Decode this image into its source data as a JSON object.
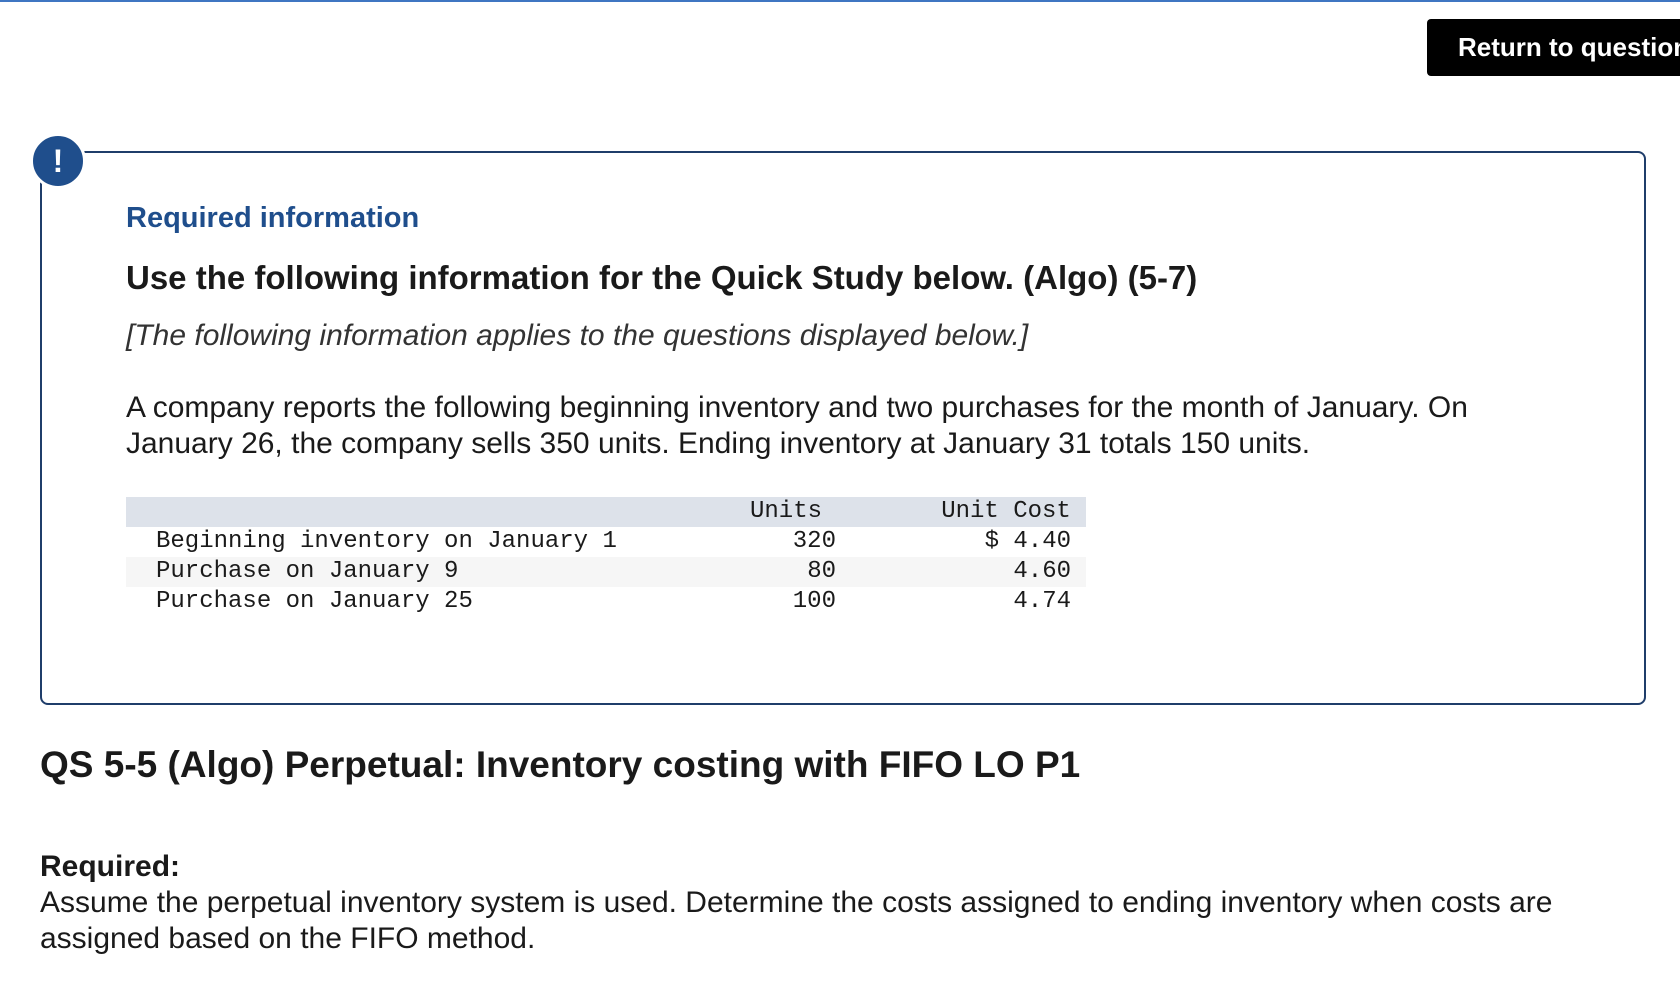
{
  "header": {
    "return_button_label": "Return to question"
  },
  "info_box": {
    "icon": "exclamation-icon",
    "icon_glyph": "!",
    "label": "Required information",
    "title": "Use the following information for the Quick Study below. (Algo) (5-7)",
    "subtitle": "[The following information applies to the questions displayed below.]",
    "paragraph": "A company reports the following beginning inventory and two purchases for the month of January. On January 26, the company sells 350 units. Ending inventory at January 31 totals 150 units.",
    "table": {
      "headers": {
        "units": "Units",
        "unit_cost": "Unit Cost"
      },
      "rows": [
        {
          "label": "Beginning inventory on January 1",
          "units": "320",
          "unit_cost": "$ 4.40"
        },
        {
          "label": "Purchase on January 9",
          "units": "80",
          "unit_cost": "4.60"
        },
        {
          "label": "Purchase on January 25",
          "units": "100",
          "unit_cost": "4.74"
        }
      ]
    }
  },
  "question": {
    "title": "QS 5-5 (Algo) Perpetual: Inventory costing with FIFO LO P1",
    "required_label": "Required:",
    "required_text": "Assume the perpetual inventory system is used. Determine the costs assigned to ending inventory when costs are assigned based on the FIFO method."
  },
  "colors": {
    "accent": "#1f4e8c",
    "box_border": "#1f3d6a",
    "table_header_bg": "#dde2ea",
    "button_bg": "#000000"
  }
}
